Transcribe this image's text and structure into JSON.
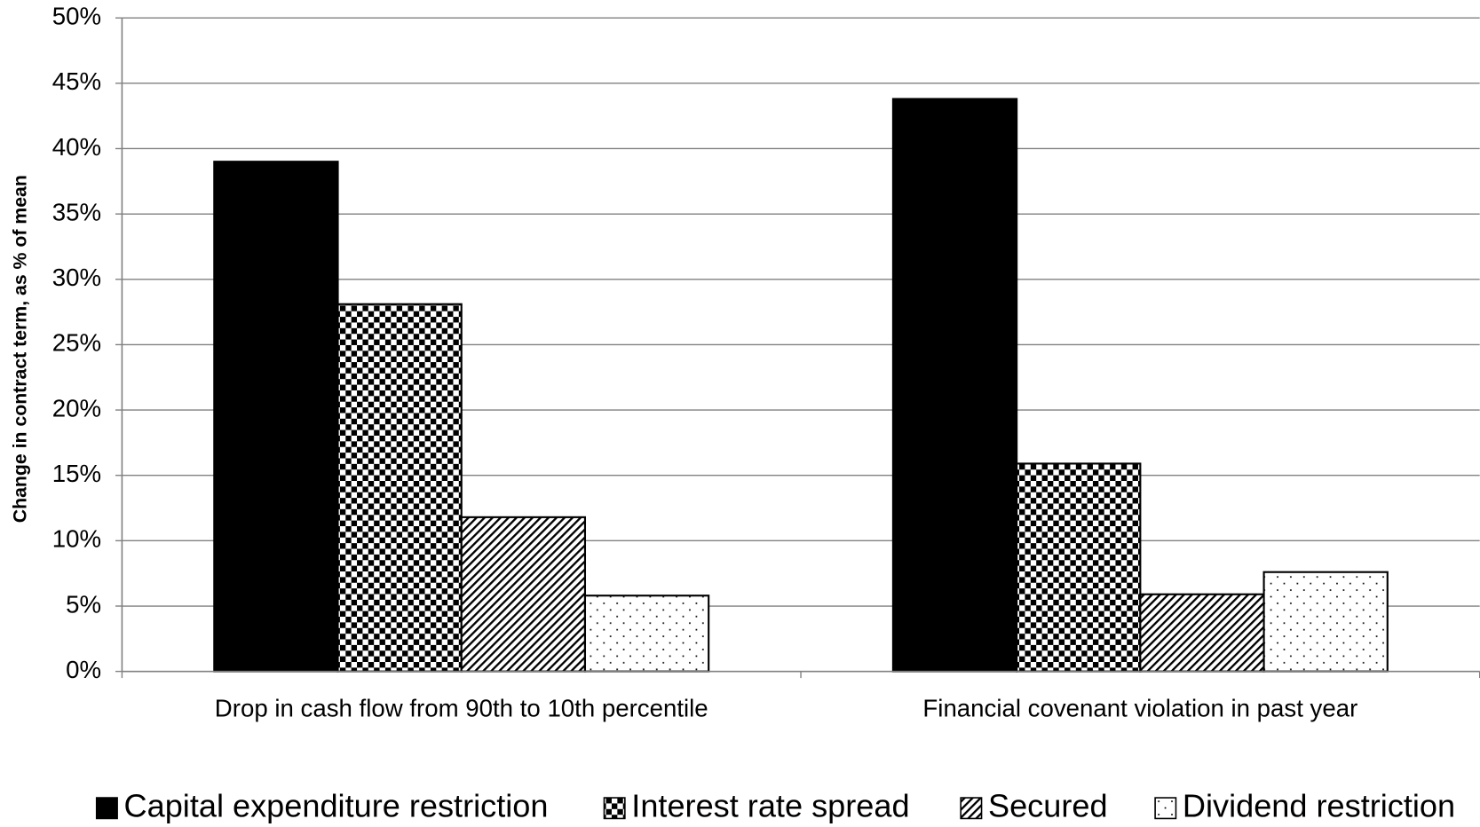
{
  "chart_data": {
    "type": "bar",
    "y_label": "Change in contract term, as % of mean",
    "categories": [
      "Drop in cash flow from 90th to 10th percentile",
      "Financial covenant violation in past year"
    ],
    "series": [
      {
        "name": "Capital expenditure restriction",
        "color": "#000000",
        "pattern": "solid",
        "values": [
          39.0,
          43.8
        ]
      },
      {
        "name": "Interest rate spread",
        "color": "#000000",
        "pattern": "checker",
        "values": [
          28.1,
          15.9
        ]
      },
      {
        "name": "Secured",
        "color": "#000000",
        "pattern": "hatch",
        "values": [
          11.8,
          5.9
        ]
      },
      {
        "name": "Dividend restriction",
        "color": "#000000",
        "pattern": "dots",
        "values": [
          5.8,
          7.6
        ]
      }
    ],
    "ylim": [
      0,
      50
    ],
    "yticks": [
      {
        "value": 0,
        "label": "0%"
      },
      {
        "value": 5,
        "label": "5%"
      },
      {
        "value": 10,
        "label": "10%"
      },
      {
        "value": 15,
        "label": "15%"
      },
      {
        "value": 20,
        "label": "20%"
      },
      {
        "value": 25,
        "label": "25%"
      },
      {
        "value": 30,
        "label": "30%"
      },
      {
        "value": 35,
        "label": "35%"
      },
      {
        "value": 40,
        "label": "40%"
      },
      {
        "value": 45,
        "label": "45%"
      },
      {
        "value": 50,
        "label": "50%"
      }
    ],
    "grid": true,
    "legend": "bottom"
  }
}
